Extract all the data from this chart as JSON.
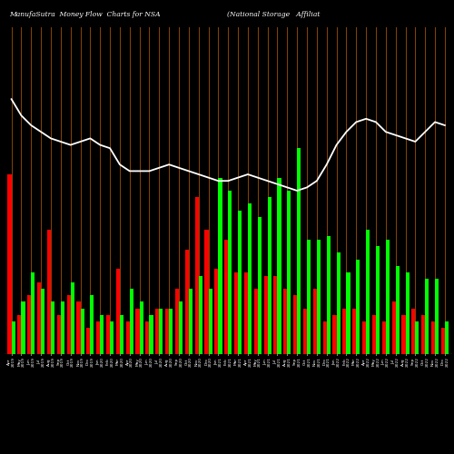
{
  "title_left": "ManufaSutra  Money Flow  Charts for NSA",
  "title_right": "(National Storage   Affiliat",
  "bg_color": "#000000",
  "bar_color_pos": "#00ff00",
  "bar_color_neg": "#ff0000",
  "grid_color": "#8B4500",
  "line_color": "#ffffff",
  "categories": [
    "Apr\n2019",
    "May\n2019",
    "Jun\n2019",
    "Jul\n2019",
    "Aug\n2019",
    "Sep\n2019",
    "Oct\n2019",
    "Nov\n2019",
    "Dec\n2019",
    "Jan\n2020",
    "Feb\n2020",
    "Mar\n2020",
    "Apr\n2020",
    "May\n2020",
    "Jun\n2020",
    "Jul\n2020",
    "Aug\n2020",
    "Sep\n2020",
    "Oct\n2020",
    "Nov\n2020",
    "Dec\n2020",
    "Jan\n2021",
    "Feb\n2021",
    "Mar\n2021",
    "Apr\n2021",
    "May\n2021",
    "Jun\n2021",
    "Jul\n2021",
    "Aug\n2021",
    "Sep\n2021",
    "Oct\n2021",
    "Nov\n2021",
    "Dec\n2021",
    "Jan\n2022",
    "Feb\n2022",
    "Mar\n2022",
    "Apr\n2022",
    "May\n2022",
    "Jun\n2022",
    "Jul\n2022",
    "Aug\n2022",
    "Sep\n2022",
    "Oct\n2022",
    "Nov\n2022",
    "Dec\n2022"
  ],
  "sell_values": [
    55,
    12,
    18,
    22,
    38,
    12,
    18,
    16,
    8,
    10,
    12,
    26,
    10,
    14,
    10,
    14,
    14,
    20,
    32,
    48,
    38,
    26,
    35,
    25,
    25,
    20,
    24,
    24,
    20,
    18,
    14,
    20,
    10,
    12,
    14,
    14,
    10,
    12,
    10,
    16,
    12,
    14,
    12,
    10,
    8
  ],
  "buy_values": [
    10,
    16,
    25,
    20,
    16,
    16,
    22,
    14,
    18,
    12,
    10,
    12,
    20,
    16,
    12,
    14,
    14,
    16,
    20,
    24,
    20,
    54,
    50,
    44,
    46,
    42,
    48,
    54,
    50,
    63,
    35,
    35,
    36,
    31,
    25,
    29,
    38,
    33,
    35,
    27,
    25,
    10,
    23,
    23,
    10
  ],
  "price_line_norm": [
    78,
    73,
    70,
    68,
    66,
    65,
    64,
    65,
    66,
    64,
    63,
    58,
    56,
    56,
    56,
    57,
    58,
    57,
    56,
    55,
    54,
    53,
    53,
    54,
    55,
    54,
    53,
    52,
    51,
    50,
    51,
    53,
    58,
    64,
    68,
    71,
    72,
    71,
    68,
    67,
    66,
    65,
    68,
    71,
    70
  ],
  "n_bars": 45,
  "figsize": [
    5.0,
    5.0
  ],
  "dpi": 100,
  "bar_width": 0.38,
  "ylim_max": 100,
  "ylim_min": 0
}
